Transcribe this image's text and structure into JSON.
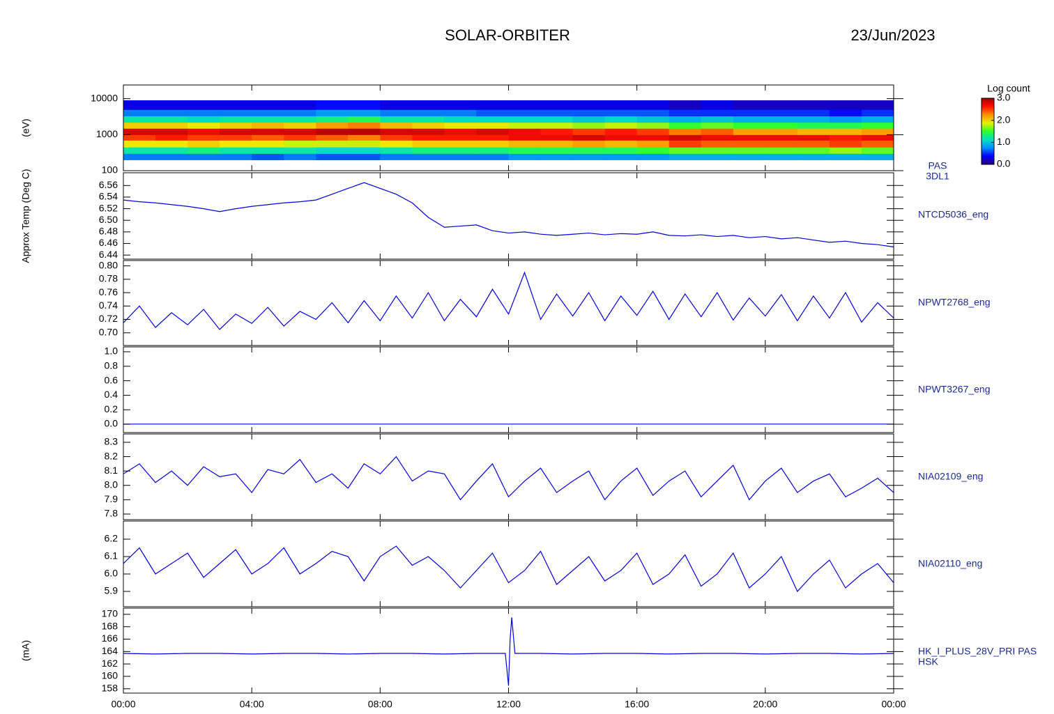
{
  "header": {
    "title": "SOLAR-ORBITER",
    "date": "23/Jun/2023"
  },
  "chart_data": [
    {
      "type": "heatmap",
      "ylabel": "(eV)",
      "label": [
        "PAS",
        "3DL1"
      ],
      "log_scale": true,
      "ylim": [
        100,
        24000
      ],
      "yticks": [
        100,
        1000,
        10000
      ],
      "x_bins": [
        0,
        1,
        2,
        3,
        4,
        5,
        6,
        7,
        8,
        9,
        10,
        11,
        12,
        13,
        14,
        15,
        16,
        17,
        18,
        19,
        20,
        21,
        22,
        23,
        24
      ],
      "y_bins": [
        200,
        300,
        450,
        700,
        1000,
        1500,
        2200,
        3300,
        5000,
        9000
      ],
      "colorbar_title": "Log count",
      "zlim": [
        0,
        3
      ],
      "zticks": [
        {
          "value": 0,
          "label": "0.0"
        },
        {
          "value": 1,
          "label": "1.0"
        },
        {
          "value": 2,
          "label": "2.0"
        },
        {
          "value": 3,
          "label": "3.0"
        }
      ],
      "colors": [
        "#2a007a",
        "#0000ff",
        "#0090ff",
        "#00e0c0",
        "#30ff30",
        "#e8f000",
        "#ff9000",
        "#ff1000",
        "#a00000"
      ],
      "z": [
        [
          0.7,
          1.2,
          1.9,
          2.5,
          2.8,
          2.0,
          1.2,
          0.7,
          0.3
        ],
        [
          0.7,
          1.2,
          1.9,
          2.6,
          2.8,
          2.0,
          1.2,
          0.7,
          0.3
        ],
        [
          0.7,
          1.3,
          2.0,
          2.5,
          2.7,
          1.9,
          1.1,
          0.7,
          0.3
        ],
        [
          0.7,
          1.2,
          1.9,
          2.5,
          2.8,
          2.0,
          1.2,
          0.7,
          0.3
        ],
        [
          0.6,
          1.2,
          1.9,
          2.4,
          2.8,
          2.1,
          1.2,
          0.7,
          0.3
        ],
        [
          0.7,
          1.2,
          1.8,
          2.5,
          2.8,
          2.0,
          1.2,
          0.7,
          0.3
        ],
        [
          0.6,
          1.1,
          1.8,
          2.4,
          2.9,
          2.2,
          1.3,
          0.8,
          0.4
        ],
        [
          0.6,
          1.1,
          1.8,
          2.3,
          2.9,
          2.3,
          1.4,
          0.8,
          0.4
        ],
        [
          0.7,
          1.2,
          1.9,
          2.5,
          2.8,
          2.1,
          1.2,
          0.7,
          0.3
        ],
        [
          0.7,
          1.3,
          2.0,
          2.6,
          2.8,
          2.0,
          1.2,
          0.7,
          0.3
        ],
        [
          0.7,
          1.3,
          2.0,
          2.6,
          2.7,
          1.9,
          1.1,
          0.7,
          0.3
        ],
        [
          0.7,
          1.3,
          2.0,
          2.6,
          2.8,
          1.9,
          1.1,
          0.6,
          0.3
        ],
        [
          0.8,
          1.4,
          2.1,
          2.7,
          2.7,
          1.8,
          1.1,
          0.6,
          0.3
        ],
        [
          0.8,
          1.4,
          2.1,
          2.7,
          2.6,
          1.8,
          1.1,
          0.6,
          0.3
        ],
        [
          0.8,
          1.4,
          2.2,
          2.8,
          2.5,
          1.7,
          1.0,
          0.6,
          0.3
        ],
        [
          0.8,
          1.4,
          2.1,
          2.7,
          2.6,
          1.8,
          1.1,
          0.6,
          0.3
        ],
        [
          0.8,
          1.5,
          2.2,
          2.7,
          2.5,
          1.7,
          1.0,
          0.6,
          0.3
        ],
        [
          0.9,
          1.6,
          2.5,
          2.8,
          2.3,
          1.5,
          0.9,
          0.5,
          0.2
        ],
        [
          0.9,
          1.6,
          2.4,
          2.7,
          2.4,
          1.6,
          1.0,
          0.5,
          0.3
        ],
        [
          0.9,
          1.6,
          2.4,
          2.7,
          2.2,
          1.5,
          0.9,
          0.5,
          0.2
        ],
        [
          0.9,
          1.6,
          2.4,
          2.7,
          2.2,
          1.5,
          0.9,
          0.5,
          0.2
        ],
        [
          0.9,
          1.6,
          2.4,
          2.7,
          2.1,
          1.4,
          0.9,
          0.5,
          0.2
        ],
        [
          0.9,
          1.7,
          2.5,
          2.6,
          2.1,
          1.4,
          0.8,
          0.4,
          0.2
        ],
        [
          0.9,
          1.6,
          2.4,
          2.7,
          2.2,
          1.5,
          0.9,
          0.5,
          0.2
        ]
      ]
    },
    {
      "type": "line",
      "ylabel": "Approx Temp (Deg C)",
      "label": "NTCD5036_eng",
      "color": "#0000e0",
      "ylim": [
        6.433,
        6.582
      ],
      "yticks": [
        6.44,
        6.46,
        6.48,
        {
          "value": 6.5,
          "label": "6.50"
        },
        6.52,
        6.54,
        6.56
      ],
      "x": [
        0,
        0.5,
        1,
        1.5,
        2,
        2.5,
        3,
        3.5,
        4,
        4.5,
        5,
        5.5,
        6,
        6.5,
        7,
        7.5,
        8,
        8.5,
        9,
        9.5,
        10,
        10.5,
        11,
        11.5,
        12,
        12.5,
        13,
        13.5,
        14,
        14.5,
        15,
        15.5,
        16,
        16.5,
        17,
        17.5,
        18,
        18.5,
        19,
        19.5,
        20,
        20.5,
        21,
        21.5,
        22,
        22.5,
        23,
        23.5,
        24
      ],
      "values": [
        6.535,
        6.532,
        6.53,
        6.527,
        6.524,
        6.52,
        6.515,
        6.52,
        6.524,
        6.527,
        6.53,
        6.532,
        6.535,
        6.545,
        6.555,
        6.565,
        6.555,
        6.545,
        6.53,
        6.505,
        6.488,
        6.49,
        6.492,
        6.482,
        6.478,
        6.48,
        6.476,
        6.474,
        6.476,
        6.478,
        6.475,
        6.477,
        6.476,
        6.48,
        6.474,
        6.473,
        6.475,
        6.472,
        6.474,
        6.47,
        6.472,
        6.468,
        6.47,
        6.466,
        6.462,
        6.464,
        6.46,
        6.458,
        6.454
      ]
    },
    {
      "type": "line",
      "label": "NPWT2768_eng",
      "color": "#0000e0",
      "ylim": [
        0.681,
        0.808
      ],
      "yticks": [
        {
          "value": 0.7,
          "label": "0.70"
        },
        0.72,
        0.74,
        0.76,
        0.78,
        {
          "value": 0.8,
          "label": "0.80"
        }
      ],
      "x": [
        0,
        0.5,
        1,
        1.5,
        2,
        2.5,
        3,
        3.5,
        4,
        4.5,
        5,
        5.5,
        6,
        6.5,
        7,
        7.5,
        8,
        8.5,
        9,
        9.5,
        10,
        10.5,
        11,
        11.5,
        12,
        12.5,
        13,
        13.5,
        14,
        14.5,
        15,
        15.5,
        16,
        16.5,
        17,
        17.5,
        18,
        18.5,
        19,
        19.5,
        20,
        20.5,
        21,
        21.5,
        22,
        22.5,
        23,
        23.5,
        24
      ],
      "values": [
        0.715,
        0.74,
        0.708,
        0.73,
        0.712,
        0.735,
        0.705,
        0.728,
        0.714,
        0.738,
        0.71,
        0.732,
        0.72,
        0.745,
        0.715,
        0.748,
        0.718,
        0.755,
        0.722,
        0.76,
        0.718,
        0.75,
        0.724,
        0.765,
        0.728,
        0.79,
        0.72,
        0.758,
        0.725,
        0.76,
        0.718,
        0.755,
        0.726,
        0.762,
        0.72,
        0.758,
        0.724,
        0.76,
        0.719,
        0.752,
        0.725,
        0.757,
        0.718,
        0.755,
        0.722,
        0.76,
        0.716,
        0.745,
        0.722
      ]
    },
    {
      "type": "line",
      "label": "NPWT3267_eng",
      "color": "#0000e0",
      "ylim": [
        -0.115,
        1.067
      ],
      "yticks": [
        {
          "value": 0,
          "label": "0.0"
        },
        0.2,
        0.4,
        0.6,
        0.8,
        {
          "value": 1,
          "label": "1.0"
        }
      ],
      "x": [
        0,
        24
      ],
      "values": [
        0.002,
        0.002
      ]
    },
    {
      "type": "line",
      "label": "NIA02109_eng",
      "color": "#0000e0",
      "ylim": [
        7.761,
        8.358
      ],
      "yticks": [
        7.8,
        7.9,
        {
          "value": 8,
          "label": "8.0"
        },
        8.1,
        8.2,
        8.3
      ],
      "x": [
        0,
        0.5,
        1,
        1.5,
        2,
        2.5,
        3,
        3.5,
        4,
        4.5,
        5,
        5.5,
        6,
        6.5,
        7,
        7.5,
        8,
        8.5,
        9,
        9.5,
        10,
        10.5,
        11,
        11.5,
        12,
        12.5,
        13,
        13.5,
        14,
        14.5,
        15,
        15.5,
        16,
        16.5,
        17,
        17.5,
        18,
        18.5,
        19,
        19.5,
        20,
        20.5,
        21,
        21.5,
        22,
        22.5,
        23,
        23.5,
        24
      ],
      "values": [
        8.08,
        8.15,
        8.02,
        8.1,
        8.0,
        8.13,
        8.06,
        8.08,
        7.95,
        8.11,
        8.08,
        8.18,
        8.02,
        8.08,
        7.98,
        8.15,
        8.08,
        8.2,
        8.03,
        8.1,
        8.08,
        7.9,
        8.03,
        8.15,
        7.92,
        8.03,
        8.12,
        7.95,
        8.03,
        8.1,
        7.9,
        8.03,
        8.12,
        7.93,
        8.03,
        8.1,
        7.92,
        8.03,
        8.14,
        7.9,
        8.03,
        8.12,
        7.95,
        8.03,
        8.08,
        7.92,
        7.98,
        8.05,
        7.95
      ]
    },
    {
      "type": "line",
      "label": "NIA02110_eng",
      "color": "#0000e0",
      "ylim": [
        5.812,
        6.304
      ],
      "yticks": [
        5.9,
        {
          "value": 6,
          "label": "6.0"
        },
        6.1,
        6.2
      ],
      "x": [
        0,
        0.5,
        1,
        1.5,
        2,
        2.5,
        3,
        3.5,
        4,
        4.5,
        5,
        5.5,
        6,
        6.5,
        7,
        7.5,
        8,
        8.5,
        9,
        9.5,
        10,
        10.5,
        11,
        11.5,
        12,
        12.5,
        13,
        13.5,
        14,
        14.5,
        15,
        15.5,
        16,
        16.5,
        17,
        17.5,
        18,
        18.5,
        19,
        19.5,
        20,
        20.5,
        21,
        21.5,
        22,
        22.5,
        23,
        23.5,
        24
      ],
      "values": [
        6.06,
        6.15,
        6.0,
        6.06,
        6.12,
        5.98,
        6.06,
        6.14,
        6.0,
        6.06,
        6.15,
        6.0,
        6.06,
        6.13,
        6.1,
        5.96,
        6.1,
        6.16,
        6.05,
        6.1,
        6.02,
        5.92,
        6.02,
        6.12,
        5.95,
        6.02,
        6.13,
        5.94,
        6.02,
        6.1,
        5.96,
        6.02,
        6.12,
        5.94,
        6.0,
        6.11,
        5.93,
        6.0,
        6.12,
        5.92,
        6.0,
        6.1,
        5.9,
        6.0,
        6.08,
        5.92,
        6.0,
        6.06,
        5.95
      ]
    },
    {
      "type": "line",
      "ylabel": "(mA)",
      "label": [
        "HK_I_PLUS_28V_PRI PAS",
        "HSK"
      ],
      "color": "#0000e0",
      "ylim": [
        157.3,
        171.0
      ],
      "yticks": [
        158,
        160,
        162,
        164,
        166,
        168,
        170
      ],
      "xlim": [
        0,
        24
      ],
      "xticks": [
        {
          "value": 0,
          "label": "00:00"
        },
        {
          "value": 4,
          "label": "04:00"
        },
        {
          "value": 8,
          "label": "08:00"
        },
        {
          "value": 12,
          "label": "12:00"
        },
        {
          "value": 16,
          "label": "16:00"
        },
        {
          "value": 20,
          "label": "20:00"
        },
        {
          "value": 24,
          "label": "00:00"
        }
      ],
      "x": [
        0,
        1,
        2,
        3,
        4,
        5,
        6,
        7,
        8,
        9,
        10,
        11,
        11.9,
        12,
        12.05,
        12.1,
        12.2,
        13,
        14,
        15,
        16,
        17,
        18,
        19,
        20,
        21,
        22,
        23,
        24
      ],
      "values": [
        163.7,
        163.6,
        163.7,
        163.7,
        163.6,
        163.7,
        163.7,
        163.6,
        163.7,
        163.7,
        163.6,
        163.7,
        163.7,
        158.5,
        166.0,
        169.5,
        163.7,
        163.7,
        163.6,
        163.7,
        163.7,
        163.6,
        163.7,
        163.7,
        163.6,
        163.7,
        163.7,
        163.6,
        163.7
      ]
    }
  ]
}
